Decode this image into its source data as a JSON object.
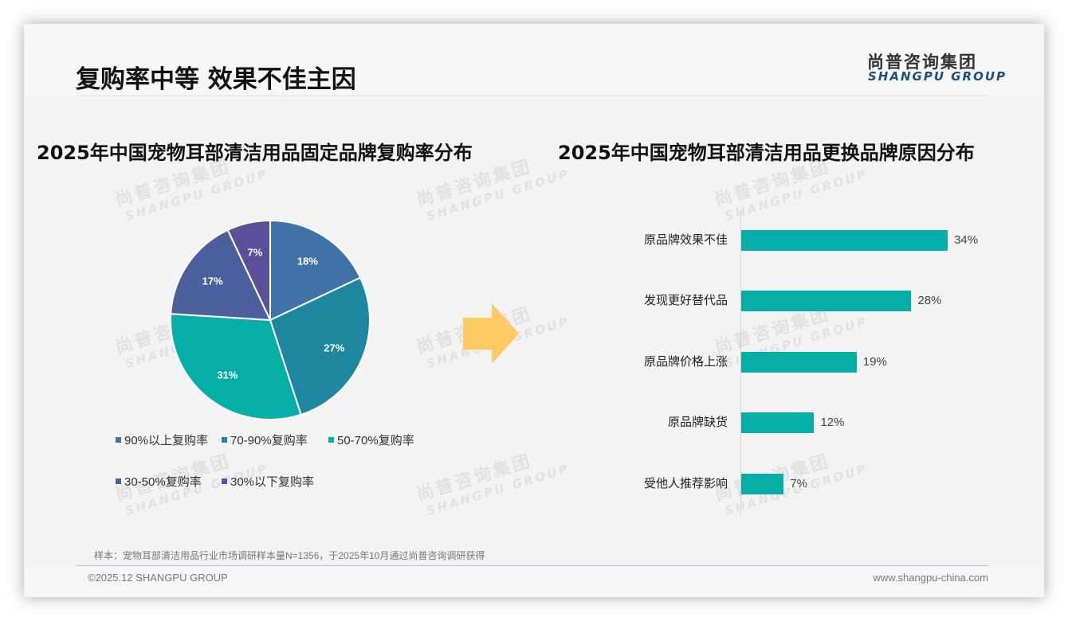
{
  "header": {
    "title": "复购率中等 效果不佳主因",
    "logo_cn": "尚普咨询集团",
    "logo_en": "SHANGPU GROUP"
  },
  "watermark": {
    "cn": "尚普咨询集团",
    "en": "SHANGPU GROUP"
  },
  "arrow": {
    "icon": "right-arrow-icon",
    "color": "#FFC964"
  },
  "chart_data": [
    {
      "type": "pie",
      "title": "2025年中国宠物耳部清洁用品固定品牌复购率分布",
      "categories": [
        "90%以上复购率",
        "70-90%复购率",
        "50-70%复购率",
        "30-50%复购率",
        "30%以下复购率"
      ],
      "values": [
        18,
        27,
        31,
        17,
        7
      ],
      "labels": [
        "18%",
        "27%",
        "31%",
        "17%",
        "7%"
      ],
      "colors": [
        "#3F72A6",
        "#1C879E",
        "#05AFA8",
        "#4A5F9C",
        "#5A4F98"
      ],
      "start_angle": "12 o'clock, clockwise",
      "legend_position": "bottom"
    },
    {
      "type": "bar",
      "orientation": "horizontal",
      "title": "2025年中国宠物耳部清洁用品更换品牌原因分布",
      "categories": [
        "原品牌效果不佳",
        "发现更好替代品",
        "原品牌价格上涨",
        "原品牌缺货",
        "受他人推荐影响"
      ],
      "values": [
        34,
        28,
        19,
        12,
        7
      ],
      "labels": [
        "34%",
        "28%",
        "19%",
        "12%",
        "7%"
      ],
      "color": "#05AFA8",
      "xlabel": "",
      "ylabel": "",
      "grid": false,
      "xlim": [
        0,
        40
      ]
    }
  ],
  "legend": {
    "items": [
      {
        "label": "90%以上复购率",
        "color": "#3F72A6"
      },
      {
        "label": "70-90%复购率",
        "color": "#1C879E"
      },
      {
        "label": "50-70%复购率",
        "color": "#05AFA8"
      },
      {
        "label": "30-50%复购率",
        "color": "#4A5F9C"
      },
      {
        "label": "30%以下复购率",
        "color": "#5A4F98"
      }
    ]
  },
  "footer": {
    "footnote": "样本：宠物耳部清洁用品行业市场调研样本量N=1356，于2025年10月通过尚普咨询调研获得",
    "copyright": "©2025.12 SHANGPU GROUP",
    "website": "www.shangpu-china.com"
  }
}
